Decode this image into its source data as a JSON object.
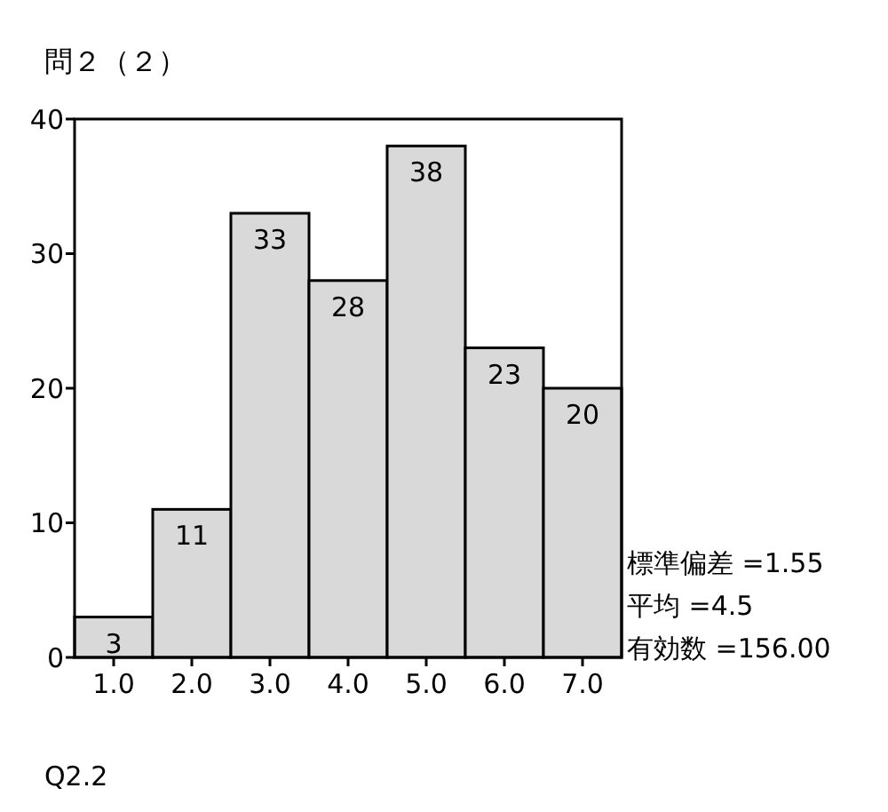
{
  "chart_data": {
    "type": "bar",
    "title": "問２（２）",
    "xlabel": "Q2.2",
    "categories": [
      "1.0",
      "2.0",
      "3.0",
      "4.0",
      "5.0",
      "6.0",
      "7.0"
    ],
    "values": [
      3,
      11,
      33,
      28,
      38,
      23,
      20
    ],
    "color": "#d9d9d9",
    "ylim": [
      0,
      40
    ],
    "yticks": [
      0,
      10,
      20,
      30,
      40
    ],
    "data_labels": true,
    "annotations": [
      "標準偏差 =1.55",
      "平均 =4.5",
      "有効数 =156.00"
    ]
  }
}
